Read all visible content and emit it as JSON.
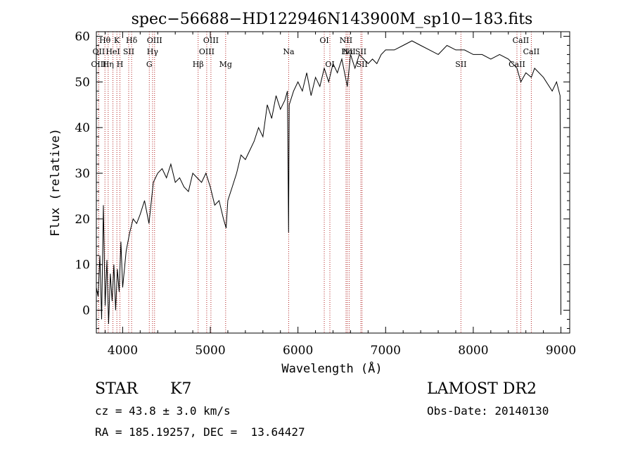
{
  "chart_data": {
    "type": "line",
    "title": "spec−56688−HD122946N143900M_sp10−183.fits",
    "xlabel": "Wavelength (Å)",
    "ylabel": "Flux (relative)",
    "xlim": [
      3700,
      9100
    ],
    "ylim": [
      -5,
      61
    ],
    "x_ticks": [
      4000,
      5000,
      6000,
      7000,
      8000,
      9000
    ],
    "y_ticks": [
      0,
      10,
      20,
      30,
      40,
      50,
      60
    ],
    "grid": false,
    "series": [
      {
        "x": [
          3700,
          3720,
          3740,
          3760,
          3780,
          3800,
          3820,
          3840,
          3860,
          3880,
          3900,
          3920,
          3940,
          3960,
          3980,
          4000,
          4040,
          4080,
          4120,
          4160,
          4200,
          4250,
          4300,
          4350,
          4400,
          4450,
          4500,
          4550,
          4600,
          4650,
          4700,
          4750,
          4800,
          4850,
          4900,
          4950,
          5000,
          5050,
          5100,
          5150,
          5180,
          5200,
          5250,
          5300,
          5350,
          5400,
          5450,
          5500,
          5550,
          5600,
          5650,
          5700,
          5750,
          5800,
          5850,
          5880,
          5893,
          5900,
          5950,
          6000,
          6050,
          6100,
          6150,
          6200,
          6250,
          6300,
          6350,
          6400,
          6450,
          6500,
          6563,
          6600,
          6650,
          6700,
          6750,
          6800,
          6850,
          6900,
          6950,
          7000,
          7100,
          7200,
          7300,
          7400,
          7500,
          7600,
          7700,
          7800,
          7900,
          8000,
          8100,
          8200,
          8300,
          8400,
          8498,
          8542,
          8600,
          8662,
          8700,
          8800,
          8900,
          8950,
          8990,
          9000
        ],
        "y": [
          5,
          3,
          12,
          -2,
          23,
          1,
          11,
          -3,
          8,
          2,
          10,
          0,
          9,
          4,
          15,
          5,
          13,
          17,
          20,
          19,
          21,
          24,
          19,
          28,
          30,
          31,
          29,
          32,
          28,
          29,
          27,
          26,
          30,
          29,
          28,
          30,
          27,
          23,
          24,
          20,
          18,
          24,
          27,
          30,
          34,
          33,
          35,
          37,
          40,
          38,
          45,
          42,
          47,
          44,
          46,
          48,
          17,
          45,
          48,
          50,
          48,
          52,
          47,
          51,
          49,
          53,
          50,
          54,
          52,
          55,
          49,
          56,
          53,
          56,
          55,
          54,
          55,
          54,
          56,
          57,
          57,
          58,
          59,
          58,
          57,
          56,
          58,
          57,
          57,
          56,
          56,
          55,
          56,
          55,
          53,
          50,
          52,
          51,
          53,
          51,
          48,
          50,
          47,
          -1
        ]
      }
    ],
    "lines": [
      {
        "label": "OII",
        "x": 3727,
        "row": 2
      },
      {
        "label": "OIII",
        "x": 3727,
        "row": 3
      },
      {
        "label": "Hθ",
        "x": 3798,
        "row": 1
      },
      {
        "label": "Hη",
        "x": 3835,
        "row": 3
      },
      {
        "label": "HeI",
        "x": 3889,
        "row": 2
      },
      {
        "label": "K",
        "x": 3934,
        "row": 1
      },
      {
        "label": "H",
        "x": 3969,
        "row": 3
      },
      {
        "label": "SII",
        "x": 4069,
        "row": 2
      },
      {
        "label": "Hδ",
        "x": 4102,
        "row": 1
      },
      {
        "label": "G",
        "x": 4304,
        "row": 3
      },
      {
        "label": "Hγ",
        "x": 4341,
        "row": 2
      },
      {
        "label": "OIII",
        "x": 4364,
        "row": 1
      },
      {
        "label": "Hβ",
        "x": 4861,
        "row": 3
      },
      {
        "label": "OIII",
        "x": 4959,
        "row": 2
      },
      {
        "label": "OIII",
        "x": 5007,
        "row": 1
      },
      {
        "label": "Mg",
        "x": 5175,
        "row": 3
      },
      {
        "label": "Na",
        "x": 5894,
        "row": 2
      },
      {
        "label": "OI",
        "x": 6300,
        "row": 1
      },
      {
        "label": "OI",
        "x": 6364,
        "row": 3
      },
      {
        "label": "NII",
        "x": 6548,
        "row": 1
      },
      {
        "label": "Hα",
        "x": 6563,
        "row": 2
      },
      {
        "label": "NII",
        "x": 6584,
        "row": 2
      },
      {
        "label": "SII",
        "x": 6717,
        "row": 2
      },
      {
        "label": "SII",
        "x": 6731,
        "row": 3
      },
      {
        "label": "SII",
        "x": 7859,
        "row": 3
      },
      {
        "label": "CaII",
        "x": 8498,
        "row": 3
      },
      {
        "label": "CaII",
        "x": 8542,
        "row": 1
      },
      {
        "label": "CaII",
        "x": 8662,
        "row": 2
      }
    ]
  },
  "info": {
    "object_class": "STAR",
    "subclass": "K7",
    "survey": "LAMOST DR2",
    "cz": "cz = 43.8 ± 3.0 km/s",
    "obs_date": "Obs-Date: 20140130",
    "coords": "RA = 185.19257, DEC =  13.64427"
  },
  "colors": {
    "spectrum": "#000000",
    "line_markers": "#b22222",
    "axes": "#000000"
  }
}
